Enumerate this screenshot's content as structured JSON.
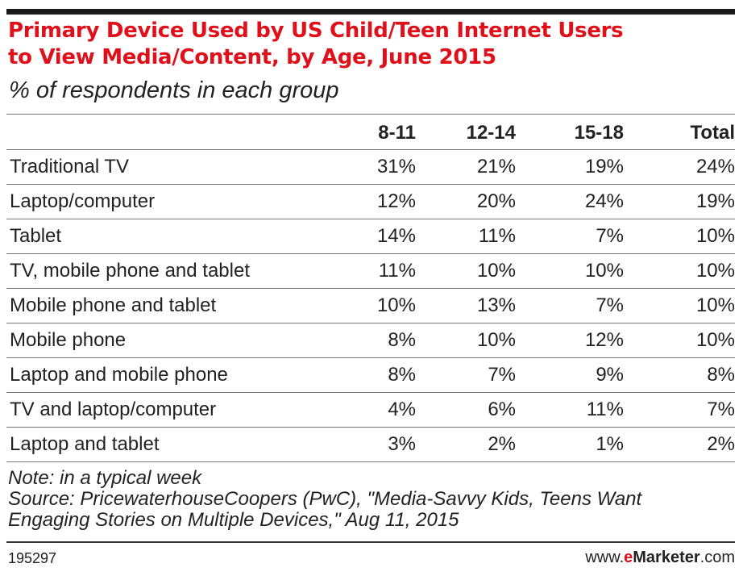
{
  "chart_data": {
    "type": "table",
    "title": "Primary Device Used by US Child/Teen Internet Users\nto View Media/Content, by Age, June 2015",
    "subtitle": "% of respondents in each group",
    "columns": [
      "8-11",
      "12-14",
      "15-18",
      "Total"
    ],
    "rows": [
      {
        "label": "Traditional TV",
        "values": [
          "31%",
          "21%",
          "19%",
          "24%"
        ]
      },
      {
        "label": "Laptop/computer",
        "values": [
          "12%",
          "20%",
          "24%",
          "19%"
        ]
      },
      {
        "label": "Tablet",
        "values": [
          "14%",
          "11%",
          "7%",
          "10%"
        ]
      },
      {
        "label": "TV, mobile phone and tablet",
        "values": [
          "11%",
          "10%",
          "10%",
          "10%"
        ]
      },
      {
        "label": "Mobile phone and tablet",
        "values": [
          "10%",
          "13%",
          "7%",
          "10%"
        ]
      },
      {
        "label": "Mobile phone",
        "values": [
          "8%",
          "10%",
          "12%",
          "10%"
        ]
      },
      {
        "label": "Laptop and mobile phone",
        "values": [
          "8%",
          "7%",
          "9%",
          "8%"
        ]
      },
      {
        "label": "TV and laptop/computer",
        "values": [
          "4%",
          "6%",
          "11%",
          "7%"
        ]
      },
      {
        "label": "Laptop and tablet",
        "values": [
          "3%",
          "2%",
          "1%",
          "2%"
        ]
      }
    ]
  },
  "notes": {
    "note": "Note: in a typical week",
    "source_line1": "Source: PricewaterhouseCoopers (PwC), \"Media-Savvy Kids, Teens Want",
    "source_line2": "Engaging Stories on Multiple Devices,\" Aug 11, 2015"
  },
  "footer": {
    "chart_id": "195297",
    "brand_prefix": "www.",
    "brand_accent": "e",
    "brand_name": "Marketer",
    "brand_suffix": ".com"
  },
  "colors": {
    "title": "#e0101b",
    "rule": "#1a1a1a",
    "text": "#222222"
  }
}
